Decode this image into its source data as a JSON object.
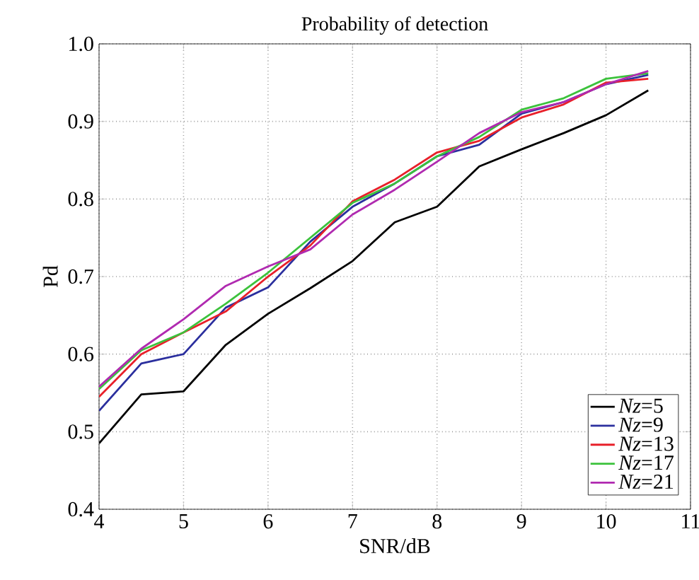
{
  "chart_data": {
    "type": "line",
    "title": "Probability of detection",
    "xlabel": "SNR/dB",
    "ylabel": "Pd",
    "x": [
      4,
      4.5,
      5,
      5.5,
      6,
      6.5,
      7,
      7.5,
      8,
      8.5,
      9,
      9.5,
      10,
      10.5
    ],
    "series": [
      {
        "name": "*Nz*=5",
        "color": "#000000",
        "values": [
          0.485,
          0.548,
          0.552,
          0.612,
          0.652,
          0.685,
          0.72,
          0.77,
          0.79,
          0.842,
          0.864,
          0.885,
          0.908,
          0.94
        ]
      },
      {
        "name": "*Nz*=9",
        "color": "#2b2f9e",
        "values": [
          0.527,
          0.588,
          0.6,
          0.66,
          0.686,
          0.745,
          0.79,
          0.82,
          0.855,
          0.87,
          0.91,
          0.925,
          0.948,
          0.96
        ]
      },
      {
        "name": "*Nz*=13",
        "color": "#e8202a",
        "values": [
          0.545,
          0.6,
          0.628,
          0.655,
          0.7,
          0.74,
          0.797,
          0.825,
          0.86,
          0.875,
          0.905,
          0.922,
          0.95,
          0.955
        ]
      },
      {
        "name": "*Nz*=17",
        "color": "#3cc23c",
        "values": [
          0.555,
          0.605,
          0.628,
          0.665,
          0.705,
          0.75,
          0.795,
          0.82,
          0.855,
          0.88,
          0.915,
          0.93,
          0.955,
          0.962
        ]
      },
      {
        "name": "*Nz*=21",
        "color": "#b02ab0",
        "values": [
          0.558,
          0.607,
          0.645,
          0.688,
          0.713,
          0.735,
          0.78,
          0.812,
          0.848,
          0.885,
          0.912,
          0.925,
          0.948,
          0.965
        ]
      }
    ],
    "xlim": [
      4,
      11
    ],
    "ylim": [
      0.4,
      1.0
    ],
    "xticks": [
      4,
      5,
      6,
      7,
      8,
      9,
      10,
      11
    ],
    "yticks": [
      0.4,
      0.5,
      0.6,
      0.7,
      0.8,
      0.9,
      {
        "value": 1.0,
        "label": "1.0"
      }
    ],
    "grid": true,
    "legend": "bottom right",
    "marker": "none",
    "line_style": "solid"
  }
}
